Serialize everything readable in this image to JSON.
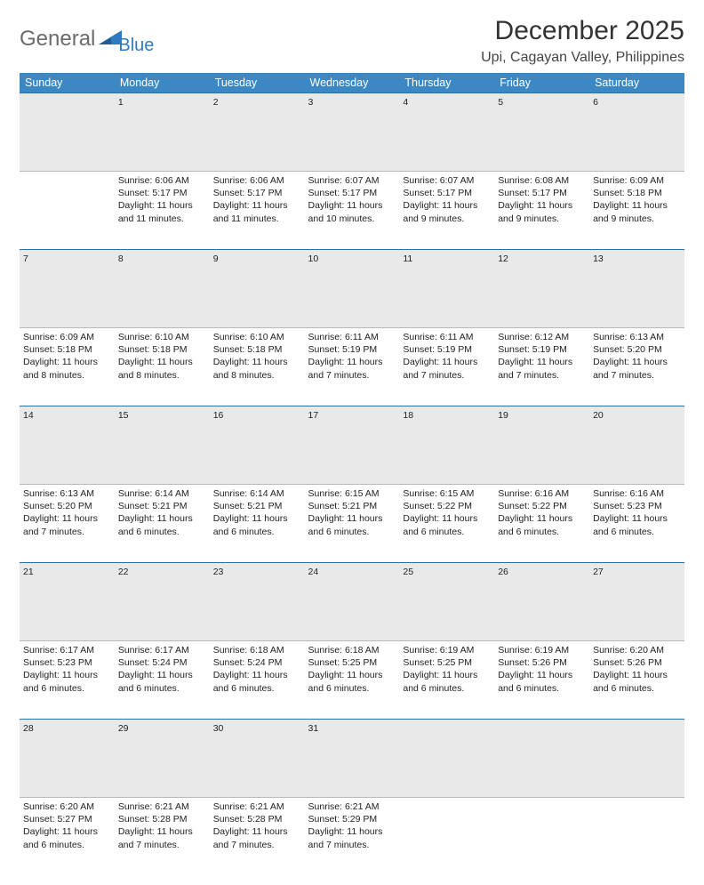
{
  "brand": {
    "name1": "General",
    "name2": "Blue",
    "accent": "#2f7bbf",
    "gray": "#6b6b6b"
  },
  "title": "December 2025",
  "location": "Upi, Cagayan Valley, Philippines",
  "colors": {
    "header_bg": "#3b88c4",
    "header_text": "#ffffff",
    "daynum_bg": "#e9e9e9",
    "daynum_border": "#2f6fa8",
    "row_border": "#b9b9b9",
    "page_bg": "#ffffff",
    "text": "#222222"
  },
  "weekday_labels": [
    "Sunday",
    "Monday",
    "Tuesday",
    "Wednesday",
    "Thursday",
    "Friday",
    "Saturday"
  ],
  "layout": {
    "first_weekday_index": 1,
    "days_in_month": 31
  },
  "days": {
    "1": {
      "sunrise": "6:06 AM",
      "sunset": "5:17 PM",
      "daylight": "11 hours and 11 minutes."
    },
    "2": {
      "sunrise": "6:06 AM",
      "sunset": "5:17 PM",
      "daylight": "11 hours and 11 minutes."
    },
    "3": {
      "sunrise": "6:07 AM",
      "sunset": "5:17 PM",
      "daylight": "11 hours and 10 minutes."
    },
    "4": {
      "sunrise": "6:07 AM",
      "sunset": "5:17 PM",
      "daylight": "11 hours and 9 minutes."
    },
    "5": {
      "sunrise": "6:08 AM",
      "sunset": "5:17 PM",
      "daylight": "11 hours and 9 minutes."
    },
    "6": {
      "sunrise": "6:09 AM",
      "sunset": "5:18 PM",
      "daylight": "11 hours and 9 minutes."
    },
    "7": {
      "sunrise": "6:09 AM",
      "sunset": "5:18 PM",
      "daylight": "11 hours and 8 minutes."
    },
    "8": {
      "sunrise": "6:10 AM",
      "sunset": "5:18 PM",
      "daylight": "11 hours and 8 minutes."
    },
    "9": {
      "sunrise": "6:10 AM",
      "sunset": "5:18 PM",
      "daylight": "11 hours and 8 minutes."
    },
    "10": {
      "sunrise": "6:11 AM",
      "sunset": "5:19 PM",
      "daylight": "11 hours and 7 minutes."
    },
    "11": {
      "sunrise": "6:11 AM",
      "sunset": "5:19 PM",
      "daylight": "11 hours and 7 minutes."
    },
    "12": {
      "sunrise": "6:12 AM",
      "sunset": "5:19 PM",
      "daylight": "11 hours and 7 minutes."
    },
    "13": {
      "sunrise": "6:13 AM",
      "sunset": "5:20 PM",
      "daylight": "11 hours and 7 minutes."
    },
    "14": {
      "sunrise": "6:13 AM",
      "sunset": "5:20 PM",
      "daylight": "11 hours and 7 minutes."
    },
    "15": {
      "sunrise": "6:14 AM",
      "sunset": "5:21 PM",
      "daylight": "11 hours and 6 minutes."
    },
    "16": {
      "sunrise": "6:14 AM",
      "sunset": "5:21 PM",
      "daylight": "11 hours and 6 minutes."
    },
    "17": {
      "sunrise": "6:15 AM",
      "sunset": "5:21 PM",
      "daylight": "11 hours and 6 minutes."
    },
    "18": {
      "sunrise": "6:15 AM",
      "sunset": "5:22 PM",
      "daylight": "11 hours and 6 minutes."
    },
    "19": {
      "sunrise": "6:16 AM",
      "sunset": "5:22 PM",
      "daylight": "11 hours and 6 minutes."
    },
    "20": {
      "sunrise": "6:16 AM",
      "sunset": "5:23 PM",
      "daylight": "11 hours and 6 minutes."
    },
    "21": {
      "sunrise": "6:17 AM",
      "sunset": "5:23 PM",
      "daylight": "11 hours and 6 minutes."
    },
    "22": {
      "sunrise": "6:17 AM",
      "sunset": "5:24 PM",
      "daylight": "11 hours and 6 minutes."
    },
    "23": {
      "sunrise": "6:18 AM",
      "sunset": "5:24 PM",
      "daylight": "11 hours and 6 minutes."
    },
    "24": {
      "sunrise": "6:18 AM",
      "sunset": "5:25 PM",
      "daylight": "11 hours and 6 minutes."
    },
    "25": {
      "sunrise": "6:19 AM",
      "sunset": "5:25 PM",
      "daylight": "11 hours and 6 minutes."
    },
    "26": {
      "sunrise": "6:19 AM",
      "sunset": "5:26 PM",
      "daylight": "11 hours and 6 minutes."
    },
    "27": {
      "sunrise": "6:20 AM",
      "sunset": "5:26 PM",
      "daylight": "11 hours and 6 minutes."
    },
    "28": {
      "sunrise": "6:20 AM",
      "sunset": "5:27 PM",
      "daylight": "11 hours and 6 minutes."
    },
    "29": {
      "sunrise": "6:21 AM",
      "sunset": "5:28 PM",
      "daylight": "11 hours and 7 minutes."
    },
    "30": {
      "sunrise": "6:21 AM",
      "sunset": "5:28 PM",
      "daylight": "11 hours and 7 minutes."
    },
    "31": {
      "sunrise": "6:21 AM",
      "sunset": "5:29 PM",
      "daylight": "11 hours and 7 minutes."
    }
  },
  "labels": {
    "sunrise": "Sunrise:",
    "sunset": "Sunset:",
    "daylight": "Daylight:"
  }
}
